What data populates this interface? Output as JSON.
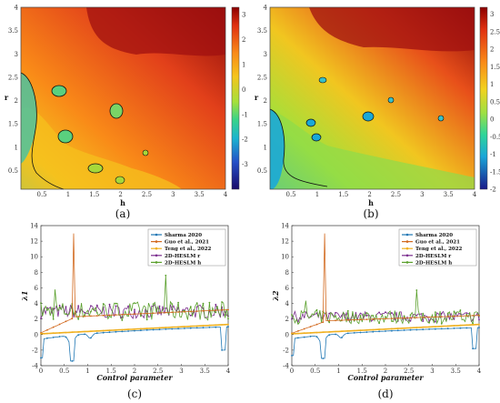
{
  "chart_data": [
    {
      "panel": "(a)",
      "type": "heatmap",
      "xlabel": "h",
      "ylabel": "r",
      "xticks": [
        "0.5",
        "1",
        "1.5",
        "2",
        "2.5",
        "3",
        "3.5",
        "4"
      ],
      "yticks": [
        "0.5",
        "1",
        "1.5",
        "2",
        "2.5",
        "3",
        "3.5",
        "4"
      ],
      "xlim": [
        0.1,
        4
      ],
      "ylim": [
        0.1,
        4
      ],
      "colorbar": {
        "ticks": [
          "3",
          "2",
          "1",
          "0",
          "-1",
          "-2",
          "-3"
        ],
        "range": [
          -4,
          3.3
        ]
      },
      "zero_contour": true
    },
    {
      "panel": "(b)",
      "type": "heatmap",
      "xlabel": "h",
      "ylabel": "r",
      "xticks": [
        "0.5",
        "1",
        "1.5",
        "2",
        "2.5",
        "3",
        "3.5",
        "4"
      ],
      "yticks": [
        "0.5",
        "1",
        "1.5",
        "2",
        "2.5",
        "3",
        "3.5",
        "4"
      ],
      "xlim": [
        0.1,
        4
      ],
      "ylim": [
        0.1,
        4
      ],
      "colorbar": {
        "ticks": [
          "3",
          "2.5",
          "2",
          "1.5",
          "1",
          "0.5",
          "0",
          "-0.5",
          "-1",
          "-1.5",
          "-2"
        ],
        "range": [
          -2,
          3.2
        ]
      },
      "zero_contour": true
    },
    {
      "panel": "(c)",
      "type": "line",
      "xlabel": "Control parameter",
      "ylabel": "λ1",
      "xlim": [
        0,
        4
      ],
      "ylim": [
        -4,
        14
      ],
      "xticks": [
        "0",
        "0.5",
        "1",
        "1.5",
        "2",
        "2.5",
        "3",
        "3.5",
        "4"
      ],
      "yticks": [
        "14",
        "12",
        "10",
        "8",
        "6",
        "4",
        "2",
        "0",
        "-2",
        "-4"
      ],
      "legend_position": "top-right",
      "series": [
        {
          "name": "Sharma 2020",
          "color": "#1f77b4"
        },
        {
          "name": "Guo et al., 2021",
          "color": "#d2691e"
        },
        {
          "name": "Teng et al., 2022",
          "color": "#f0b020"
        },
        {
          "name": "2D-HESLM r",
          "color": "#7b2d8e"
        },
        {
          "name": "2D-HESLM h",
          "color": "#5aa02c"
        }
      ]
    },
    {
      "panel": "(d)",
      "type": "line",
      "xlabel": "Control parameter",
      "ylabel": "λ2",
      "xlim": [
        0,
        4
      ],
      "ylim": [
        -4,
        14
      ],
      "xticks": [
        "0",
        "0.5",
        "1",
        "1.5",
        "2",
        "2.5",
        "3",
        "3.5",
        "4"
      ],
      "yticks": [
        "14",
        "12",
        "10",
        "8",
        "6",
        "4",
        "2",
        "0",
        "-2",
        "-4"
      ],
      "legend_position": "top-right",
      "series": [
        {
          "name": "Sharma 2020",
          "color": "#1f77b4"
        },
        {
          "name": "Guo et al., 2021",
          "color": "#d2691e"
        },
        {
          "name": "Teng et al., 2022",
          "color": "#f0b020"
        },
        {
          "name": "2D-HESLM r",
          "color": "#7b2d8e"
        },
        {
          "name": "2D-HESLM h",
          "color": "#5aa02c"
        }
      ]
    }
  ]
}
